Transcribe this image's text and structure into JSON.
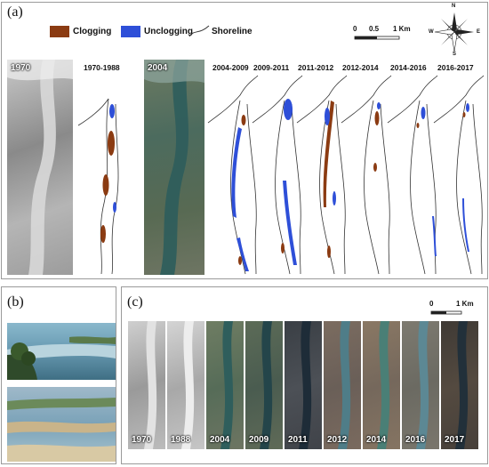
{
  "panel_a": {
    "label": "(a)",
    "legend": {
      "clogging": "Clogging",
      "unclogging": "Unclogging",
      "shoreline": "Shoreline",
      "clogging_color": "#8b3b12",
      "unclogging_color": "#2e4fd8"
    },
    "scale": {
      "ticks": [
        "0",
        "0.5",
        "1 Km"
      ]
    },
    "compass": {
      "n": "N",
      "s": "S",
      "e": "E",
      "w": "W"
    },
    "photos": [
      {
        "year": "1970"
      },
      {
        "year": "2004"
      }
    ],
    "periods": [
      "1970-1988",
      "2004-2009",
      "2009-2011",
      "2011-2012",
      "2012-2014",
      "2014-2016",
      "2016-2017"
    ]
  },
  "panel_b": {
    "label": "(b)"
  },
  "panel_c": {
    "label": "(c)",
    "scale": {
      "ticks": [
        "0",
        "1 Km"
      ]
    },
    "years": [
      "1970",
      "1988",
      "2004",
      "2009",
      "2011",
      "2012",
      "2014",
      "2016",
      "2017"
    ]
  }
}
